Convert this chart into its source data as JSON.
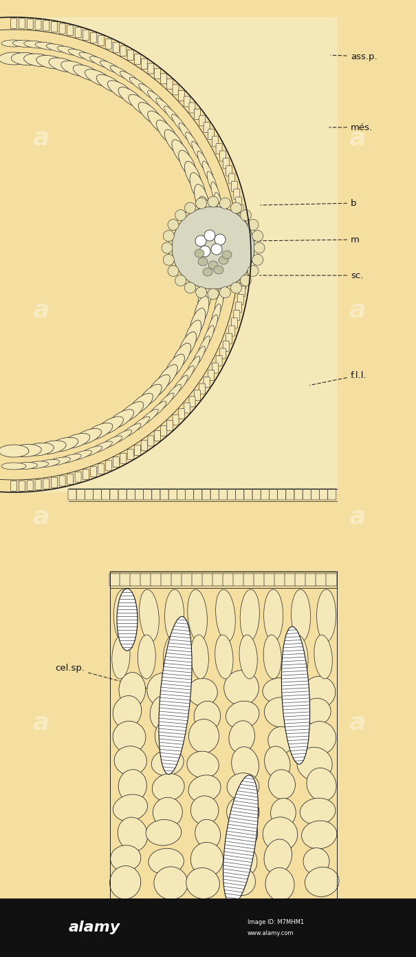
{
  "background_color": "#f5dfa0",
  "line_color": "#1a1a1a",
  "cell_fill": "#f5e8b8",
  "fig_width": 6.05,
  "fig_height": 13.9,
  "dpi": 100,
  "labels": {
    "ass_p": "ass.p.",
    "mes": "més.",
    "b": "b",
    "m": "m",
    "sc": "sc.",
    "fll": "f.l.l.",
    "cel_sp": "cel.sp."
  }
}
